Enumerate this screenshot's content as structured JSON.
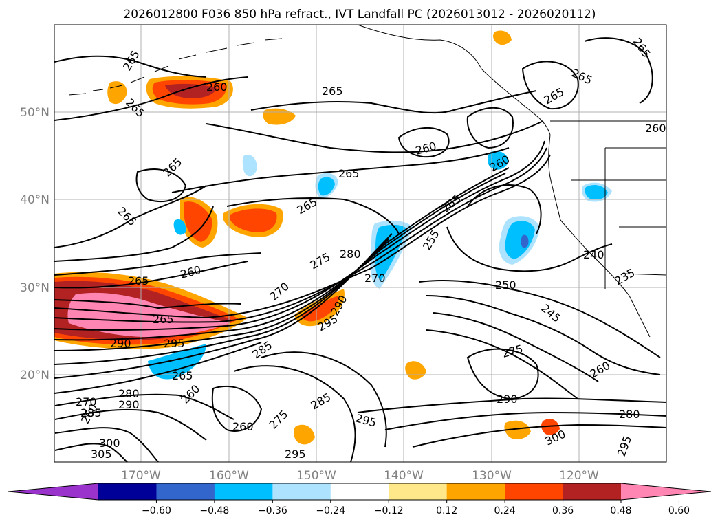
{
  "title": "2026012800 F036 850 hPa refract., IVT Landfall PC (2026013012 - 2026020112)",
  "map": {
    "lat_labels": [
      "50°N",
      "40°N",
      "30°N",
      "20°N"
    ],
    "lon_labels": [
      "170°W",
      "160°W",
      "150°W",
      "140°W",
      "130°W",
      "120°W"
    ],
    "contour_labels": [
      "265",
      "265",
      "265",
      "260",
      "265",
      "260",
      "265",
      "265",
      "265",
      "265",
      "260",
      "260",
      "265",
      "265",
      "265",
      "265",
      "255",
      "280",
      "275",
      "270",
      "270",
      "260",
      "265",
      "290",
      "290",
      "295",
      "295",
      "285",
      "285",
      "250",
      "245",
      "240",
      "235",
      "260",
      "275",
      "290",
      "280",
      "300",
      "295",
      "295",
      "295",
      "260",
      "260",
      "280",
      "270",
      "290",
      "285",
      "300",
      "305",
      "275",
      "265",
      "260"
    ]
  },
  "colorbar": {
    "tick_labels": [
      "−0.60",
      "−0.48",
      "−0.36",
      "−0.24",
      "−0.12",
      "0.12",
      "0.24",
      "0.36",
      "0.48",
      "0.60"
    ],
    "bins": [
      {
        "color": "#9933cc"
      },
      {
        "color": "#000099"
      },
      {
        "color": "#3366cc"
      },
      {
        "color": "#00bfff"
      },
      {
        "color": "#aee3ff"
      },
      {
        "color": "#ffffff"
      },
      {
        "color": "#ffe88a"
      },
      {
        "color": "#ffa500"
      },
      {
        "color": "#ff4500"
      },
      {
        "color": "#b22222"
      },
      {
        "color": "#ff85b3"
      }
    ]
  }
}
